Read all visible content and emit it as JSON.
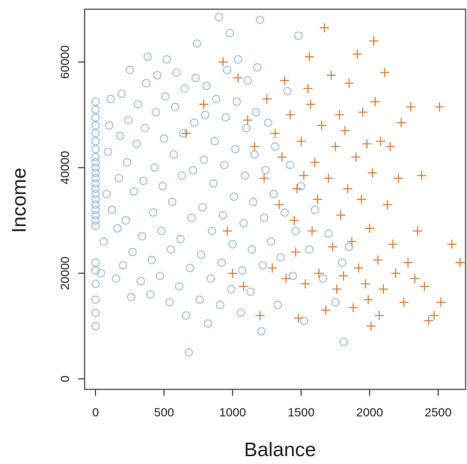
{
  "chart_data": {
    "type": "scatter",
    "title": "",
    "xlabel": "Balance",
    "ylabel": "Income",
    "xlim": [
      -80,
      2700
    ],
    "ylim": [
      -2000,
      70000
    ],
    "xticks": [
      0,
      500,
      1000,
      1500,
      2000,
      2500
    ],
    "xtick_labels": [
      "0",
      "500",
      "1000",
      "1500",
      "2000",
      "2500"
    ],
    "yticks": [
      0,
      20000,
      40000,
      60000
    ],
    "ytick_labels": [
      "0",
      "20000",
      "40000",
      "60000"
    ],
    "grid": false,
    "legend": "none",
    "series": [
      {
        "marker": "circle",
        "color": "#8fb8dc",
        "points": [
          [
            0,
            10000
          ],
          [
            0,
            12500
          ],
          [
            0,
            15000
          ],
          [
            0,
            18000
          ],
          [
            0,
            20500
          ],
          [
            0,
            22000
          ],
          [
            0,
            29000
          ],
          [
            0,
            30000
          ],
          [
            0,
            31000
          ],
          [
            0,
            32000
          ],
          [
            0,
            33000
          ],
          [
            0,
            34000
          ],
          [
            0,
            35000
          ],
          [
            0,
            36000
          ],
          [
            0,
            37000
          ],
          [
            0,
            38000
          ],
          [
            0,
            39000
          ],
          [
            0,
            40000
          ],
          [
            0,
            41000
          ],
          [
            0,
            42000
          ],
          [
            0,
            43500
          ],
          [
            0,
            45000
          ],
          [
            0,
            46500
          ],
          [
            0,
            48000
          ],
          [
            0,
            49500
          ],
          [
            0,
            51000
          ],
          [
            0,
            52500
          ],
          [
            40,
            20000
          ],
          [
            60,
            26000
          ],
          [
            80,
            35000
          ],
          [
            90,
            43000
          ],
          [
            100,
            48000
          ],
          [
            110,
            53000
          ],
          [
            120,
            32000
          ],
          [
            150,
            19000
          ],
          [
            160,
            28500
          ],
          [
            170,
            38000
          ],
          [
            180,
            46000
          ],
          [
            190,
            54000
          ],
          [
            200,
            21500
          ],
          [
            220,
            30000
          ],
          [
            230,
            41000
          ],
          [
            240,
            49000
          ],
          [
            250,
            58500
          ],
          [
            260,
            15500
          ],
          [
            270,
            24000
          ],
          [
            280,
            35500
          ],
          [
            300,
            44500
          ],
          [
            310,
            52000
          ],
          [
            330,
            18500
          ],
          [
            340,
            27000
          ],
          [
            350,
            37500
          ],
          [
            360,
            47500
          ],
          [
            370,
            56000
          ],
          [
            380,
            61000
          ],
          [
            400,
            16000
          ],
          [
            410,
            22500
          ],
          [
            420,
            31500
          ],
          [
            430,
            40000
          ],
          [
            440,
            50500
          ],
          [
            450,
            57500
          ],
          [
            470,
            19500
          ],
          [
            480,
            28000
          ],
          [
            490,
            36500
          ],
          [
            500,
            45500
          ],
          [
            510,
            53500
          ],
          [
            520,
            60500
          ],
          [
            540,
            14500
          ],
          [
            550,
            24500
          ],
          [
            560,
            33500
          ],
          [
            570,
            42500
          ],
          [
            580,
            51500
          ],
          [
            590,
            58000
          ],
          [
            610,
            17500
          ],
          [
            620,
            26500
          ],
          [
            630,
            38500
          ],
          [
            640,
            46500
          ],
          [
            650,
            55000
          ],
          [
            660,
            12000
          ],
          [
            680,
            5000
          ],
          [
            690,
            21000
          ],
          [
            700,
            30500
          ],
          [
            710,
            39500
          ],
          [
            720,
            48500
          ],
          [
            730,
            57000
          ],
          [
            740,
            63500
          ],
          [
            760,
            15000
          ],
          [
            770,
            23500
          ],
          [
            780,
            32500
          ],
          [
            790,
            41500
          ],
          [
            800,
            50000
          ],
          [
            810,
            55500
          ],
          [
            820,
            10500
          ],
          [
            840,
            19000
          ],
          [
            850,
            28000
          ],
          [
            860,
            37000
          ],
          [
            870,
            45000
          ],
          [
            880,
            53000
          ],
          [
            900,
            68500
          ],
          [
            910,
            14000
          ],
          [
            920,
            22000
          ],
          [
            930,
            31000
          ],
          [
            940,
            40500
          ],
          [
            950,
            49500
          ],
          [
            960,
            58500
          ],
          [
            980,
            65500
          ],
          [
            990,
            17000
          ],
          [
            1000,
            25500
          ],
          [
            1010,
            34500
          ],
          [
            1020,
            43500
          ],
          [
            1030,
            52500
          ],
          [
            1040,
            60500
          ],
          [
            1060,
            12500
          ],
          [
            1070,
            20500
          ],
          [
            1080,
            29500
          ],
          [
            1090,
            38500
          ],
          [
            1100,
            47500
          ],
          [
            1110,
            56500
          ],
          [
            1130,
            16500
          ],
          [
            1140,
            24500
          ],
          [
            1150,
            33500
          ],
          [
            1160,
            42500
          ],
          [
            1170,
            50500
          ],
          [
            1180,
            59000
          ],
          [
            1200,
            68000
          ],
          [
            1210,
            9000
          ],
          [
            1220,
            21500
          ],
          [
            1230,
            30500
          ],
          [
            1240,
            39500
          ],
          [
            1260,
            48500
          ],
          [
            1280,
            26000
          ],
          [
            1300,
            35000
          ],
          [
            1310,
            44000
          ],
          [
            1330,
            14000
          ],
          [
            1350,
            23000
          ],
          [
            1380,
            31500
          ],
          [
            1400,
            54500
          ],
          [
            1420,
            40500
          ],
          [
            1440,
            19500
          ],
          [
            1460,
            28000
          ],
          [
            1480,
            65000
          ],
          [
            1500,
            36500
          ],
          [
            1520,
            11000
          ],
          [
            1560,
            24500
          ],
          [
            1600,
            32000
          ],
          [
            1660,
            19000
          ],
          [
            1700,
            27500
          ],
          [
            1750,
            14500
          ],
          [
            1800,
            22000
          ],
          [
            1810,
            7000
          ],
          [
            1850,
            25000
          ]
        ]
      },
      {
        "marker": "plus",
        "color": "#d9742a",
        "points": [
          [
            660,
            46500
          ],
          [
            790,
            52000
          ],
          [
            930,
            60000
          ],
          [
            960,
            28000
          ],
          [
            1000,
            20000
          ],
          [
            1040,
            57000
          ],
          [
            1080,
            17500
          ],
          [
            1110,
            49000
          ],
          [
            1160,
            44000
          ],
          [
            1200,
            12000
          ],
          [
            1230,
            38000
          ],
          [
            1250,
            53000
          ],
          [
            1290,
            21000
          ],
          [
            1310,
            46500
          ],
          [
            1340,
            33000
          ],
          [
            1360,
            42000
          ],
          [
            1380,
            56500
          ],
          [
            1390,
            19000
          ],
          [
            1420,
            50000
          ],
          [
            1450,
            30000
          ],
          [
            1460,
            24000
          ],
          [
            1480,
            11500
          ],
          [
            1500,
            45000
          ],
          [
            1520,
            38500
          ],
          [
            1530,
            18000
          ],
          [
            1560,
            61000
          ],
          [
            1570,
            52000
          ],
          [
            1580,
            28000
          ],
          [
            1600,
            41000
          ],
          [
            1620,
            34000
          ],
          [
            1630,
            20000
          ],
          [
            1650,
            48000
          ],
          [
            1670,
            66500
          ],
          [
            1680,
            13000
          ],
          [
            1700,
            38000
          ],
          [
            1720,
            57500
          ],
          [
            1730,
            25000
          ],
          [
            1750,
            44000
          ],
          [
            1760,
            17000
          ],
          [
            1780,
            50000
          ],
          [
            1790,
            31000
          ],
          [
            1810,
            19500
          ],
          [
            1820,
            47000
          ],
          [
            1840,
            36000
          ],
          [
            1850,
            56000
          ],
          [
            1870,
            26000
          ],
          [
            1880,
            13500
          ],
          [
            1900,
            42000
          ],
          [
            1910,
            61500
          ],
          [
            1920,
            21000
          ],
          [
            1940,
            34000
          ],
          [
            1950,
            50500
          ],
          [
            1970,
            18000
          ],
          [
            1980,
            44500
          ],
          [
            2000,
            28500
          ],
          [
            2010,
            10000
          ],
          [
            2020,
            39000
          ],
          [
            2030,
            64000
          ],
          [
            2040,
            52500
          ],
          [
            2060,
            22500
          ],
          [
            2080,
            45000
          ],
          [
            2100,
            17000
          ],
          [
            2110,
            58000
          ],
          [
            2130,
            33000
          ],
          [
            2150,
            44000
          ],
          [
            2170,
            25500
          ],
          [
            2190,
            20000
          ],
          [
            2210,
            38000
          ],
          [
            2230,
            48500
          ],
          [
            2250,
            14500
          ],
          [
            2280,
            22000
          ],
          [
            2300,
            51500
          ],
          [
            2330,
            19000
          ],
          [
            2350,
            28000
          ],
          [
            2380,
            38500
          ],
          [
            2400,
            17500
          ],
          [
            2430,
            11000
          ],
          [
            2470,
            12000
          ],
          [
            2520,
            14500
          ],
          [
            2600,
            25500
          ],
          [
            2660,
            22000
          ],
          [
            2510,
            51500
          ],
          [
            1550,
            55000
          ],
          [
            1470,
            36000
          ],
          [
            1990,
            15000
          ],
          [
            2070,
            12000
          ]
        ]
      }
    ]
  }
}
